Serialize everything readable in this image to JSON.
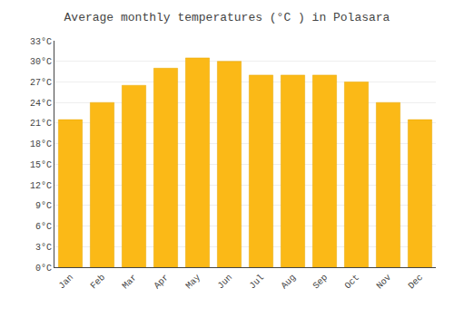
{
  "chart_data": {
    "type": "bar",
    "title": "Average monthly temperatures (°C ) in Polasara",
    "categories": [
      "Jan",
      "Feb",
      "Mar",
      "Apr",
      "May",
      "Jun",
      "Jul",
      "Aug",
      "Sep",
      "Oct",
      "Nov",
      "Dec"
    ],
    "values": [
      21.5,
      24.0,
      26.5,
      29.0,
      30.5,
      30.0,
      28.0,
      28.0,
      28.0,
      27.0,
      24.0,
      21.5
    ],
    "color": "#FBB917",
    "ylim": [
      0,
      33
    ],
    "yticks": [
      {
        "value": 0,
        "label": "0°C"
      },
      {
        "value": 3,
        "label": "3°C"
      },
      {
        "value": 6,
        "label": "6°C"
      },
      {
        "value": 9,
        "label": "9°C"
      },
      {
        "value": 12,
        "label": "12°C"
      },
      {
        "value": 15,
        "label": "15°C"
      },
      {
        "value": 18,
        "label": "18°C"
      },
      {
        "value": 21,
        "label": "21°C"
      },
      {
        "value": 24,
        "label": "24°C"
      },
      {
        "value": 27,
        "label": "27°C"
      },
      {
        "value": 30,
        "label": "30°C"
      },
      {
        "value": 33,
        "label": "33°C"
      }
    ],
    "grid": true
  }
}
